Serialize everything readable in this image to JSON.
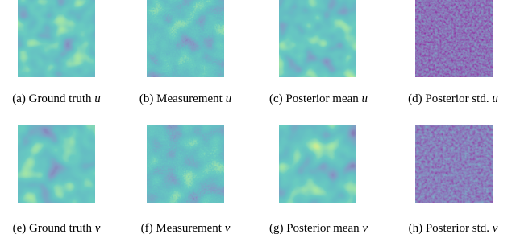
{
  "panels": [
    {
      "label": "(a)",
      "text": "Ground truth",
      "var": "u"
    },
    {
      "label": "(b)",
      "text": "Measurement",
      "var": "u"
    },
    {
      "label": "(c)",
      "text": "Posterior mean",
      "var": "u"
    },
    {
      "label": "(d)",
      "text": "Posterior std.",
      "var": "u"
    },
    {
      "label": "(e)",
      "text": "Ground truth",
      "var": "v"
    },
    {
      "label": "(f)",
      "text": "Measurement",
      "var": "v"
    },
    {
      "label": "(g)",
      "text": "Posterior mean",
      "var": "v"
    },
    {
      "label": "(h)",
      "text": "Posterior std.",
      "var": "v"
    }
  ]
}
